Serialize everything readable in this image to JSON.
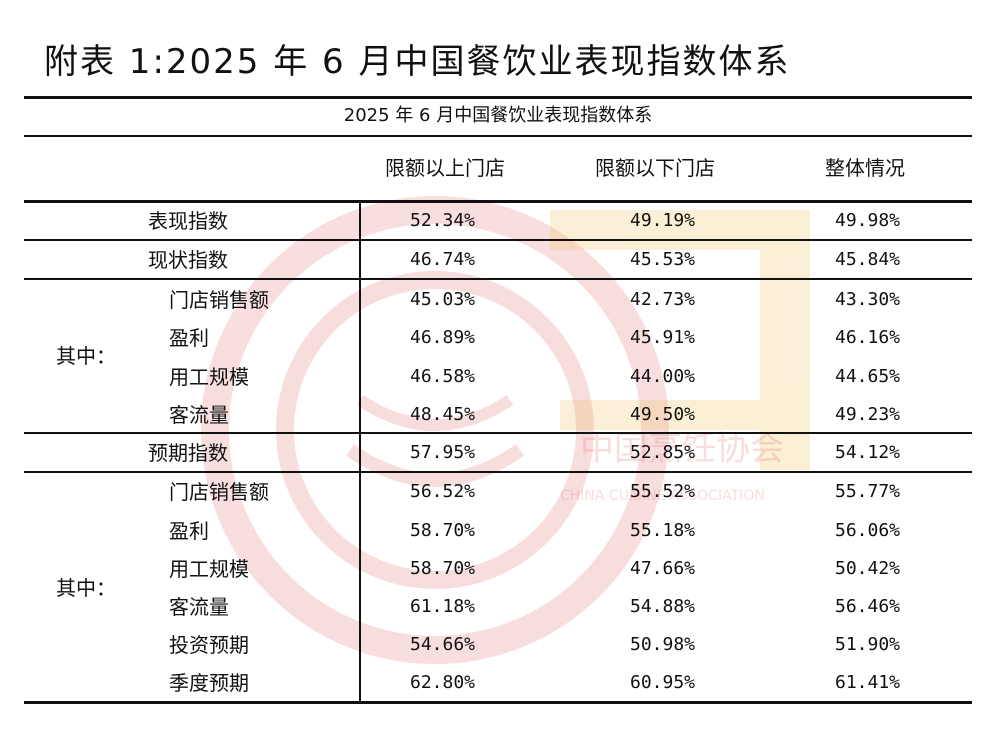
{
  "title": "附表 1:2025 年 6 月中国餐饮业表现指数体系",
  "watermark": {
    "text": "中国烹饪协会",
    "subtext": "CHINA CUISINE ASSOCIATION",
    "color": "#e8a0a0"
  },
  "table": {
    "caption": "2025 年 6 月中国餐饮业表现指数体系",
    "columns": [
      "限额以上门店",
      "限额以下门店",
      "整体情况"
    ],
    "group_label": "其中：",
    "rows": [
      {
        "label": "表现指数",
        "values": [
          "52.34%",
          "49.19%",
          "49.98%"
        ]
      },
      {
        "label": "现状指数",
        "values": [
          "46.74%",
          "45.53%",
          "45.84%"
        ]
      },
      {
        "label": "门店销售额",
        "values": [
          "45.03%",
          "42.73%",
          "43.30%"
        ]
      },
      {
        "label": "盈利",
        "values": [
          "46.89%",
          "45.91%",
          "46.16%"
        ]
      },
      {
        "label": "用工规模",
        "values": [
          "46.58%",
          "44.00%",
          "44.65%"
        ]
      },
      {
        "label": "客流量",
        "values": [
          "48.45%",
          "49.50%",
          "49.23%"
        ]
      },
      {
        "label": "预期指数",
        "values": [
          "57.95%",
          "52.85%",
          "54.12%"
        ]
      },
      {
        "label": "门店销售额",
        "values": [
          "56.52%",
          "55.52%",
          "55.77%"
        ]
      },
      {
        "label": "盈利",
        "values": [
          "58.70%",
          "55.18%",
          "56.06%"
        ]
      },
      {
        "label": "用工规模",
        "values": [
          "58.70%",
          "47.66%",
          "50.42%"
        ]
      },
      {
        "label": "客流量",
        "values": [
          "61.18%",
          "54.88%",
          "56.46%"
        ]
      },
      {
        "label": "投资预期",
        "values": [
          "54.66%",
          "50.98%",
          "51.90%"
        ]
      },
      {
        "label": "季度预期",
        "values": [
          "62.80%",
          "60.95%",
          "61.41%"
        ]
      }
    ]
  }
}
